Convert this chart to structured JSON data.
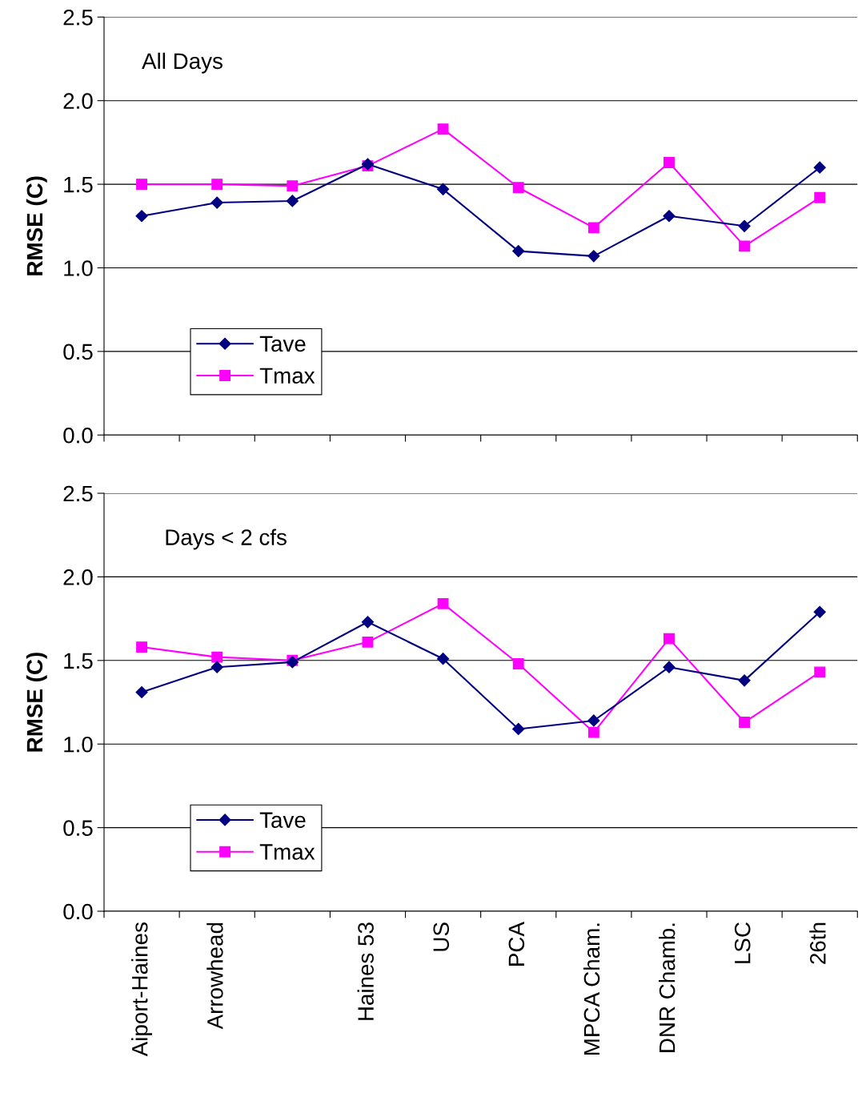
{
  "chart_data": [
    {
      "type": "line",
      "ylabel": "RMSE (C)",
      "annotations": [
        "All Days"
      ],
      "categories": [
        null,
        null,
        null,
        null,
        null,
        null,
        null,
        null,
        null,
        null
      ],
      "ylim": [
        0,
        2.5
      ],
      "yticks": [
        {
          "value": 0,
          "label": "0.0"
        },
        0.5,
        {
          "value": 1,
          "label": "1.0"
        },
        1.5,
        {
          "value": 2,
          "label": "2.0"
        },
        2.5
      ],
      "grid": "y",
      "legend": "bottom left",
      "tick_labels": "y",
      "series": [
        {
          "name": "Tave",
          "color": "#000080",
          "marker": "diamond",
          "values": [
            1.31,
            1.39,
            1.4,
            1.62,
            1.47,
            1.1,
            1.07,
            1.31,
            1.25,
            1.6
          ]
        },
        {
          "name": "Tmax",
          "color": "#ff00ff",
          "marker": "square",
          "values": [
            1.5,
            1.5,
            1.49,
            1.61,
            1.83,
            1.48,
            1.24,
            1.63,
            1.13,
            1.42
          ]
        }
      ]
    },
    {
      "type": "line",
      "ylabel": "RMSE (C)",
      "annotations": [
        "Days < 2 cfs"
      ],
      "categories": [
        "Aiport-Haines",
        "Arrowhead",
        null,
        "Haines 53",
        "US",
        "PCA",
        "MPCA Cham.",
        "DNR Chamb.",
        "LSC",
        "26th"
      ],
      "ylim": [
        0,
        2.5
      ],
      "yticks": [
        {
          "value": 0,
          "label": "0.0"
        },
        0.5,
        {
          "value": 1,
          "label": "1.0"
        },
        1.5,
        {
          "value": 2,
          "label": "2.0"
        },
        2.5
      ],
      "grid": "y",
      "legend": "bottom left",
      "series": [
        {
          "name": "Tave",
          "color": "#000080",
          "marker": "diamond",
          "values": [
            1.31,
            1.46,
            1.49,
            1.73,
            1.51,
            1.09,
            1.14,
            1.46,
            1.38,
            1.79
          ]
        },
        {
          "name": "Tmax",
          "color": "#ff00ff",
          "marker": "square",
          "values": [
            1.58,
            1.52,
            1.5,
            1.61,
            1.84,
            1.48,
            1.07,
            1.63,
            1.13,
            1.43
          ]
        }
      ]
    }
  ]
}
